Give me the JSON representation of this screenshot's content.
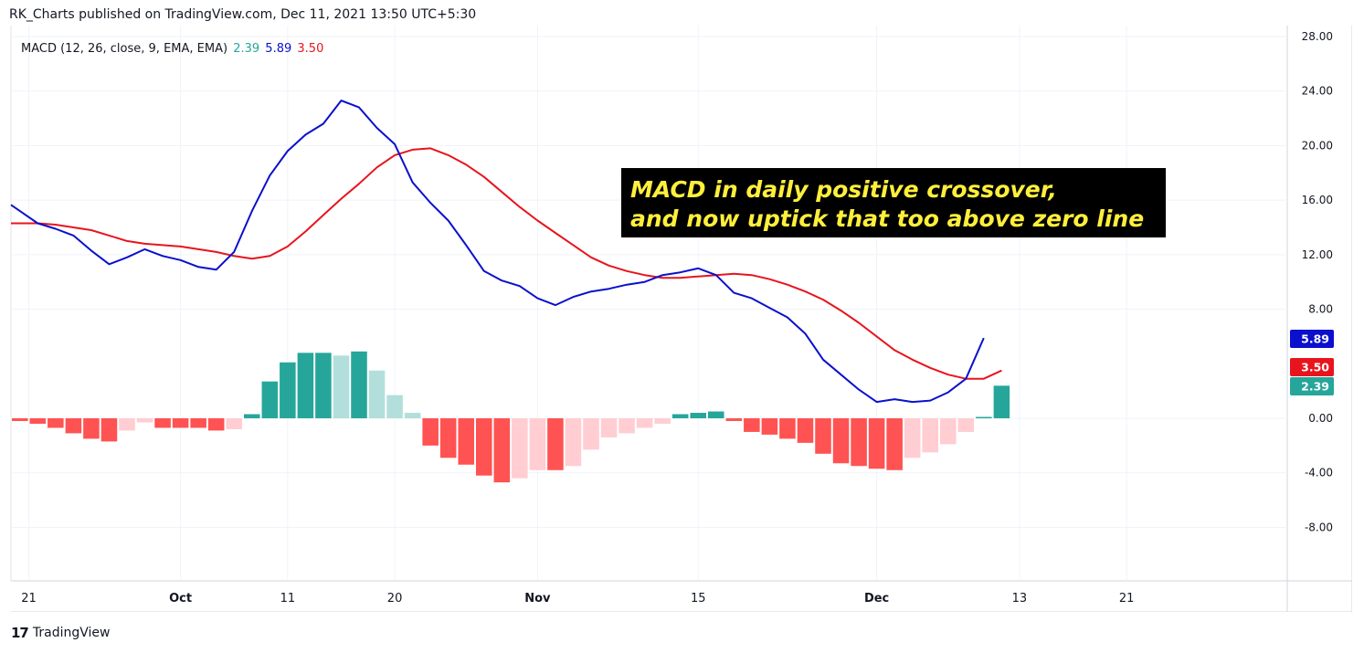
{
  "header": {
    "text": "RK_Charts published on TradingView.com, Dec 11, 2021 13:50 UTC+5:30"
  },
  "legend": {
    "title": "MACD (12, 26, close, 9, EMA, EMA)",
    "hist_value": "2.39",
    "macd_value": "5.89",
    "signal_value": "3.50"
  },
  "annotation": {
    "line1": "MACD in daily positive crossover,",
    "line2": "and now uptick that too above zero line"
  },
  "footer": {
    "brand": "TradingView",
    "logo": "17"
  },
  "colors": {
    "macd": "#0a10cc",
    "signal": "#e8141d",
    "hist_pos_strong": "#26a69a",
    "hist_pos_weak": "#b2dfdb",
    "hist_neg_strong": "#ff5252",
    "hist_neg_weak": "#ffcdd2"
  },
  "chart_data": {
    "type": "line",
    "title": "MACD (12, 26, close, 9, EMA, EMA)",
    "ylim": [
      -12,
      28
    ],
    "y_ticks": [
      "28.00",
      "24.00",
      "20.00",
      "16.00",
      "12.00",
      "8.00",
      "0.00",
      "-4.00",
      "-8.00"
    ],
    "y_tick_values": [
      28,
      24,
      20,
      16,
      12,
      8,
      0,
      -4,
      -8
    ],
    "x_tick_labels": [
      {
        "label": "21",
        "i": 1
      },
      {
        "label": "Oct",
        "i": 9.5
      },
      {
        "label": "11",
        "i": 15.5
      },
      {
        "label": "20",
        "i": 21.5
      },
      {
        "label": "Nov",
        "i": 29.5
      },
      {
        "label": "15",
        "i": 38.5
      },
      {
        "label": "Dec",
        "i": 48.5
      },
      {
        "label": "13",
        "i": 56.5
      },
      {
        "label": "21",
        "i": 62.5
      }
    ],
    "x_tick_bold": [
      false,
      true,
      false,
      false,
      true,
      false,
      true,
      false,
      false
    ],
    "i_max": 71.5,
    "series": [
      {
        "name": "MACD",
        "values": [
          15.2,
          14.3,
          13.9,
          13.4,
          12.3,
          11.3,
          11.8,
          12.4,
          11.9,
          11.6,
          11.1,
          10.9,
          12.2,
          15.2,
          17.8,
          19.6,
          20.8,
          21.6,
          23.3,
          22.8,
          21.3,
          20.1,
          17.3,
          15.8,
          14.5,
          12.7,
          10.8,
          10.1,
          9.7,
          8.8,
          8.3,
          8.9,
          9.3,
          9.5,
          9.8,
          10.0,
          10.5,
          10.7,
          11.0,
          10.5,
          9.2,
          8.8,
          8.1,
          7.4,
          6.2,
          4.3,
          3.2,
          2.1,
          1.2,
          1.4,
          1.2,
          1.3,
          1.9,
          2.9,
          5.89
        ],
        "start_index": 0
      },
      {
        "name": "Signal",
        "values": [
          14.3,
          14.3,
          14.2,
          14.0,
          13.8,
          13.4,
          13.0,
          12.8,
          12.7,
          12.6,
          12.4,
          12.2,
          11.9,
          11.7,
          11.9,
          12.6,
          13.7,
          14.9,
          16.1,
          17.2,
          18.4,
          19.3,
          19.7,
          19.8,
          19.3,
          18.6,
          17.7,
          16.6,
          15.5,
          14.5,
          13.6,
          12.7,
          11.8,
          11.2,
          10.8,
          10.5,
          10.3,
          10.3,
          10.4,
          10.5,
          10.6,
          10.5,
          10.2,
          9.8,
          9.3,
          8.7,
          7.9,
          7.0,
          6.0,
          5.0,
          4.3,
          3.7,
          3.2,
          2.9,
          2.9,
          3.5
        ],
        "start_index": 0
      },
      {
        "name": "Histogram",
        "values": [
          0.7,
          -0.2,
          -0.4,
          -0.7,
          -1.1,
          -1.5,
          -1.7,
          -0.9,
          -0.3,
          -0.7,
          -0.7,
          -0.7,
          -0.9,
          -0.8,
          0.3,
          2.7,
          4.1,
          4.8,
          4.8,
          4.6,
          4.9,
          3.5,
          1.7,
          0.4,
          -2.0,
          -2.9,
          -3.4,
          -4.2,
          -4.7,
          -4.4,
          -3.8,
          -3.8,
          -3.5,
          -2.3,
          -1.4,
          -1.1,
          -0.7,
          -0.4,
          0.3,
          0.4,
          0.5,
          -0.2,
          -1.0,
          -1.2,
          -1.5,
          -1.8,
          -2.6,
          -3.3,
          -3.5,
          -3.7,
          -3.8,
          -2.9,
          -2.5,
          -1.9,
          -1.0,
          0.1,
          2.39
        ],
        "start_index": -1
      }
    ]
  }
}
